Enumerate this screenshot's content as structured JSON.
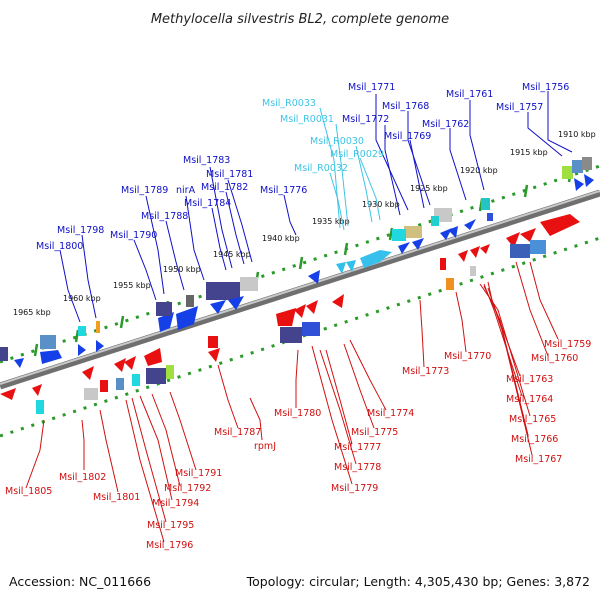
{
  "title": "Methylocella silvestris BL2, complete genome",
  "footer": {
    "accession": "Accession: NC_011666",
    "topology": "Topology: circular; Length: 4,305,430 bp; Genes: 3,872"
  },
  "colors": {
    "plus_strand_label": "#1010c8",
    "minus_strand_label": "#d01010",
    "rna_label": "#3fc4e6",
    "backbone": "#8a8a8a",
    "tick": "#2a9a2a"
  },
  "ticks": [
    "1910 kbp",
    "1915 kbp",
    "1920 kbp",
    "1925 kbp",
    "1930 kbp",
    "1935 kbp",
    "1940 kbp",
    "1945 kbp",
    "1950 kbp",
    "1955 kbp",
    "1960 kbp",
    "1965 kbp"
  ],
  "labels_top_blue": [
    "Msil_1756",
    "Msil_1757",
    "Msil_1761",
    "Msil_1762",
    "Msil_1768",
    "Msil_1769",
    "Msil_1771",
    "Msil_1772",
    "Msil_1776",
    "Msil_1781",
    "Msil_1782",
    "Msil_1783",
    "Msil_1784",
    "Msil_1788",
    "Msil_1789",
    "nirA",
    "Msil_1790",
    "Msil_1798",
    "Msil_1800"
  ],
  "labels_top_cyan": [
    "Msil_R0033",
    "Msil_R0031",
    "Msil_R0030",
    "Msil_R0029",
    "Msil_R0032"
  ],
  "labels_bottom_red": [
    "Msil_1759",
    "Msil_1760",
    "Msil_1763",
    "Msil_1764",
    "Msil_1765",
    "Msil_1766",
    "Msil_1767",
    "Msil_1770",
    "Msil_1773",
    "Msil_1774",
    "Msil_1775",
    "Msil_1777",
    "Msil_1778",
    "Msil_1779",
    "Msil_1780",
    "Msil_1787",
    "rpmJ",
    "Msil_1791",
    "Msil_1792",
    "Msil_1794",
    "Msil_1795",
    "Msil_1796",
    "Msil_1801",
    "Msil_1802",
    "Msil_1805"
  ]
}
